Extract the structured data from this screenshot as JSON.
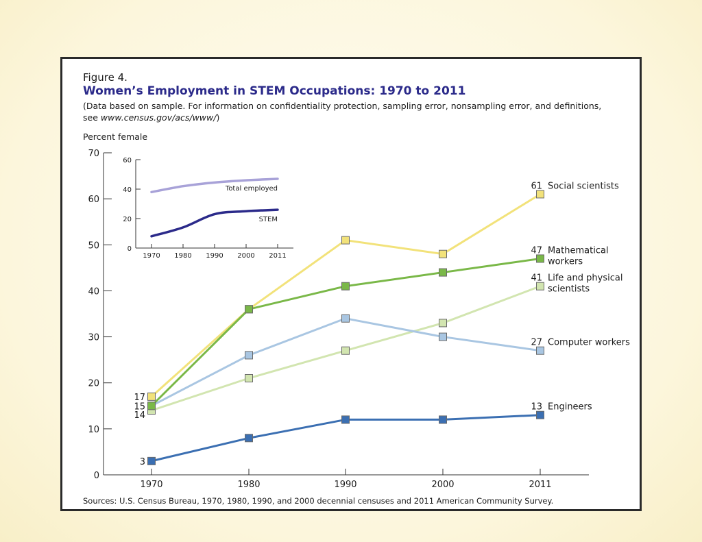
{
  "figure": {
    "label": "Figure 4.",
    "title": "Women’s Employment in STEM Occupations: 1970 to 2011",
    "note_line1": "(Data based on sample. For information on confidentiality protection, sampling error, nonsampling error, and definitions,",
    "note_line2_prefix": "see ",
    "note_line2_link": "www.census.gov/acs/www/",
    "note_line2_suffix": ")",
    "source": "Sources: U.S. Census Bureau, 1970, 1980, 1990, and 2000 decennial censuses and 2011 American Community Survey."
  },
  "chart_data": [
    {
      "type": "line",
      "ylabel": "Percent female",
      "x": [
        "1970",
        "1980",
        "1990",
        "2000",
        "2011"
      ],
      "ylim": [
        0,
        70
      ],
      "yticks": [
        0,
        10,
        20,
        30,
        40,
        50,
        60,
        70
      ],
      "series": [
        {
          "name": "Social scientists",
          "values": [
            17,
            36,
            51,
            48,
            61
          ],
          "color": "#f2e27a",
          "start_label": "17",
          "end_label": "61"
        },
        {
          "name": "Mathematical workers",
          "name_lines": [
            "Mathematical",
            "workers"
          ],
          "values": [
            15,
            36,
            41,
            44,
            47
          ],
          "color": "#7ab848",
          "start_label": "",
          "end_label": "47"
        },
        {
          "name": "Life and physical scientists",
          "name_lines": [
            "Life and physical",
            "scientists"
          ],
          "values": [
            14,
            21,
            27,
            33,
            41
          ],
          "color": "#d2e5b0",
          "start_label": "14",
          "end_label": "41"
        },
        {
          "name": "Computer workers",
          "values": [
            15,
            26,
            34,
            30,
            27
          ],
          "color": "#a9c6e2",
          "start_label": "15",
          "end_label": "27"
        },
        {
          "name": "Engineers",
          "values": [
            3,
            8,
            12,
            12,
            13
          ],
          "color": "#3b6fb2",
          "start_label": "3",
          "end_label": "13"
        }
      ]
    },
    {
      "type": "line",
      "x": [
        "1970",
        "1980",
        "1990",
        "2000",
        "2011"
      ],
      "ylim": [
        0,
        60
      ],
      "yticks": [
        0,
        20,
        40,
        60
      ],
      "series": [
        {
          "name": "Total employed",
          "values": [
            38,
            42,
            44.5,
            46,
            47
          ],
          "color": "#a8a2d8"
        },
        {
          "name": "STEM",
          "values": [
            8,
            14,
            23,
            25,
            26
          ],
          "color": "#2b2a8a"
        }
      ]
    }
  ]
}
